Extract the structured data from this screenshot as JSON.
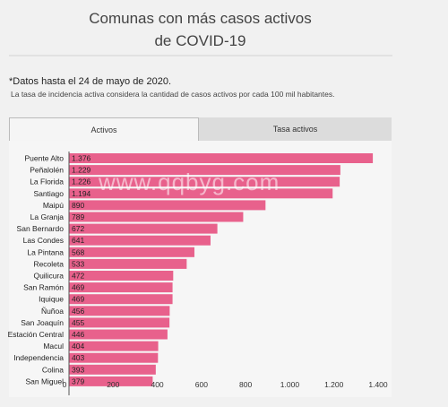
{
  "header": {
    "title_line1": "Comunas con más casos activos",
    "title_line2": "de COVID-19"
  },
  "notes": {
    "date_note": "*Datos hasta el 24 de mayo de 2020.",
    "description": "La tasa de incidencia activa considera la cantidad de casos activos por cada 100 mil habitantes."
  },
  "tabs": [
    {
      "label": "Activos",
      "active": true
    },
    {
      "label": "Tasa activos",
      "active": false
    }
  ],
  "watermark": "www.qqbyg.com",
  "chart_data": {
    "type": "bar",
    "orientation": "horizontal",
    "categories": [
      "Puente Alto",
      "Peñalolén",
      "La Florida",
      "Santiago",
      "Maipú",
      "La Granja",
      "San Bernardo",
      "Las Condes",
      "La Pintana",
      "Recoleta",
      "Quilicura",
      "San Ramón",
      "Iquique",
      "Ñuñoa",
      "San Joaquín",
      "Estación Central",
      "Macul",
      "Independencia",
      "Colina",
      "San Miguel"
    ],
    "values": [
      1376,
      1229,
      1226,
      1194,
      890,
      789,
      672,
      641,
      568,
      533,
      472,
      469,
      469,
      456,
      455,
      446,
      404,
      403,
      393,
      379
    ],
    "value_labels": [
      "1.376",
      "1.229",
      "1.226",
      "1.194",
      "890",
      "789",
      "672",
      "641",
      "568",
      "533",
      "472",
      "469",
      "469",
      "456",
      "455",
      "446",
      "404",
      "403",
      "393",
      "379"
    ],
    "xlim": [
      0,
      1400
    ],
    "x_ticks": [
      0,
      200,
      400,
      600,
      800,
      1000,
      1200,
      1400
    ],
    "x_tick_labels": [
      "0",
      "200",
      "400",
      "600",
      "800",
      "1.000",
      "1.200",
      "1.400"
    ],
    "bar_color": "#e8618c",
    "grid": false
  }
}
